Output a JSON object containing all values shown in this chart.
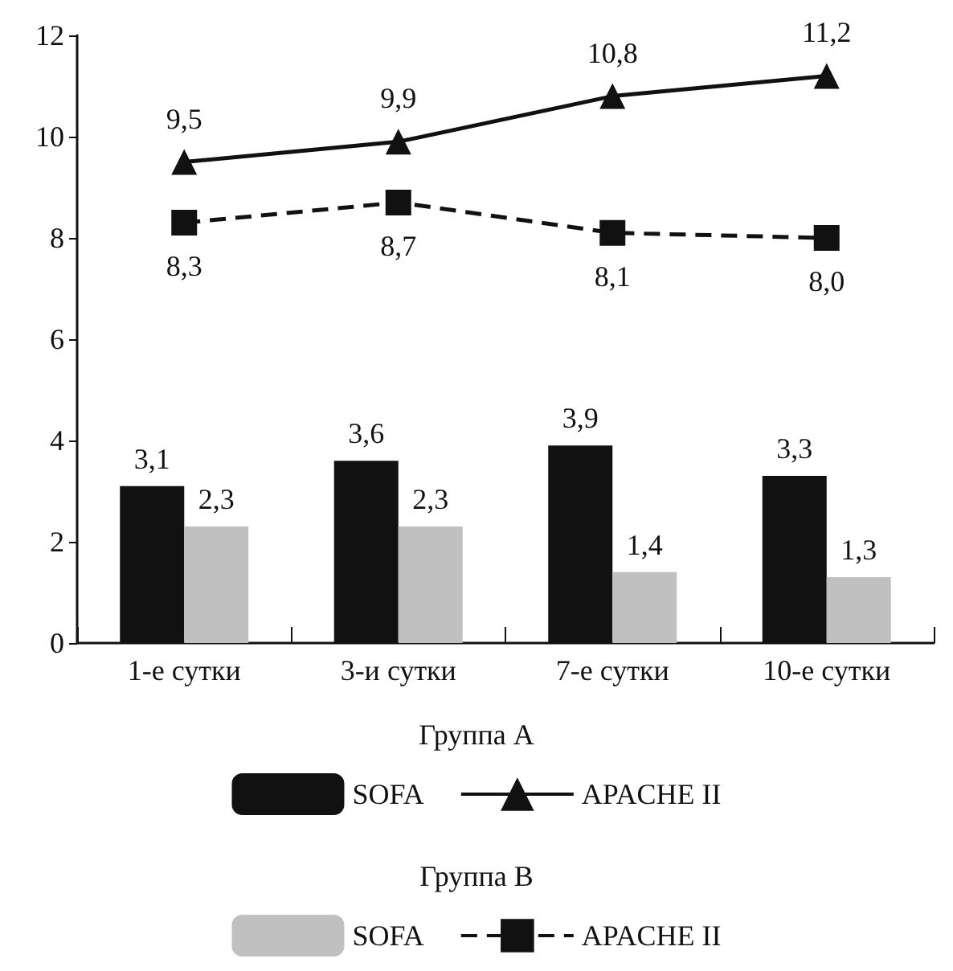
{
  "chart_data": {
    "type": "bar",
    "categories": [
      "1-е сутки",
      "3-и сутки",
      "7-е сутки",
      "10-е сутки"
    ],
    "series": [
      {
        "name": "SOFA",
        "color": "#111111",
        "values": [
          3.1,
          3.6,
          3.9,
          3.3
        ],
        "value_labels": [
          "3,1",
          "3,6",
          "3,9",
          "3,3"
        ]
      },
      {
        "name": "SOFA",
        "color": "#c0c0c0",
        "values": [
          2.3,
          2.3,
          1.4,
          1.3
        ],
        "value_labels": [
          "2,3",
          "2,3",
          "1,4",
          "1,3"
        ]
      },
      {
        "name": "APACHE II",
        "type": "line",
        "color": "#111111",
        "marker": "triangle",
        "line_style": "solid",
        "values": [
          9.5,
          9.9,
          10.8,
          11.2
        ],
        "value_labels": [
          "9,5",
          "9,9",
          "10,8",
          "11,2"
        ]
      },
      {
        "name": "APACHE II",
        "type": "line",
        "color": "#111111",
        "marker": "square",
        "line_style": "dashed",
        "values": [
          8.3,
          8.7,
          8.1,
          8.0
        ],
        "value_labels": [
          "8,3",
          "8,7",
          "8,1",
          "8,0"
        ]
      }
    ],
    "ylim": [
      0,
      12
    ],
    "yticks": [
      0,
      2,
      4,
      6,
      8,
      10,
      12
    ],
    "grid": false,
    "legend": "bottom",
    "annotations": [
      "Группа А",
      "Группа В"
    ]
  }
}
